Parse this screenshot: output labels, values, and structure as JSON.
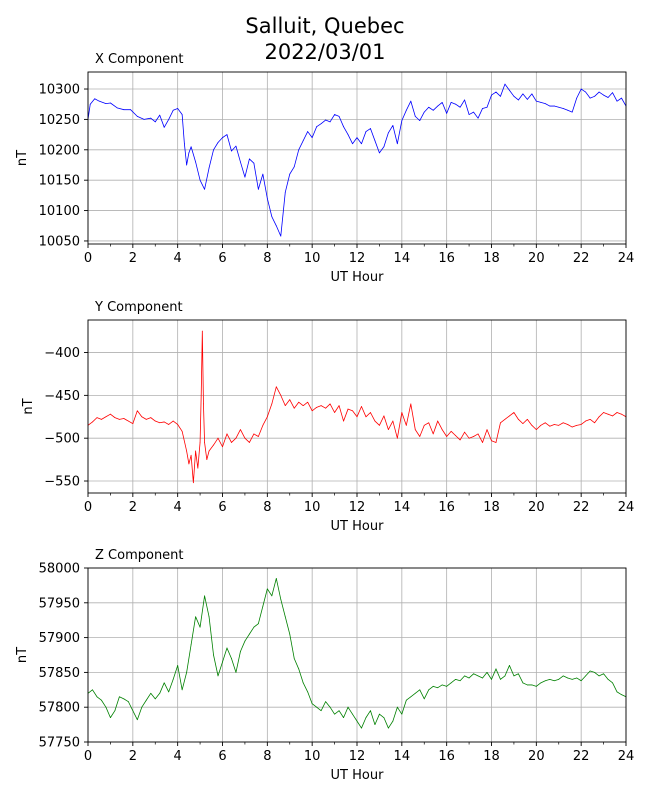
{
  "figure": {
    "title_line1": "Salluit, Quebec",
    "title_line2": "2022/03/01"
  },
  "chart_data": [
    {
      "type": "line",
      "title": "X Component",
      "xlabel": "UT Hour",
      "ylabel": "nT",
      "color": "#0000ff",
      "xlim": [
        0,
        24
      ],
      "ylim": [
        10045,
        10328
      ],
      "xticks": [
        0,
        2,
        4,
        6,
        8,
        10,
        12,
        14,
        16,
        18,
        20,
        22,
        24
      ],
      "yticks": [
        10050,
        10100,
        10150,
        10200,
        10250,
        10300
      ],
      "grid": true,
      "series": [
        {
          "x": [
            0,
            0.1,
            0.3,
            0.5,
            0.8,
            1.0,
            1.3,
            1.6,
            1.9,
            2.2,
            2.5,
            2.8,
            3.0,
            3.2,
            3.4,
            3.6,
            3.8,
            4.0,
            4.2,
            4.3,
            4.4,
            4.5,
            4.6,
            4.8,
            5.0,
            5.2,
            5.4,
            5.6,
            5.8,
            6.0,
            6.2,
            6.4,
            6.6,
            6.8,
            7.0,
            7.2,
            7.4,
            7.6,
            7.8,
            8.0,
            8.2,
            8.4,
            8.6,
            8.8,
            9.0,
            9.2,
            9.4,
            9.6,
            9.8,
            10.0,
            10.2,
            10.4,
            10.6,
            10.8,
            11.0,
            11.2,
            11.4,
            11.6,
            11.8,
            12.0,
            12.2,
            12.4,
            12.6,
            12.8,
            13.0,
            13.2,
            13.4,
            13.6,
            13.8,
            14.0,
            14.2,
            14.4,
            14.6,
            14.8,
            15.0,
            15.2,
            15.4,
            15.6,
            15.8,
            16.0,
            16.2,
            16.4,
            16.6,
            16.8,
            17.0,
            17.2,
            17.4,
            17.6,
            17.8,
            18.0,
            18.2,
            18.4,
            18.6,
            18.8,
            19.0,
            19.2,
            19.4,
            19.6,
            19.8,
            20.0,
            20.2,
            20.4,
            20.6,
            20.8,
            21.0,
            21.2,
            21.4,
            21.6,
            21.8,
            22.0,
            22.2,
            22.4,
            22.6,
            22.8,
            23.0,
            23.2,
            23.4,
            23.6,
            23.8,
            24.0
          ],
          "y": [
            10250,
            10275,
            10284,
            10280,
            10276,
            10277,
            10269,
            10266,
            10266,
            10255,
            10250,
            10252,
            10246,
            10257,
            10237,
            10250,
            10265,
            10268,
            10258,
            10210,
            10175,
            10195,
            10205,
            10180,
            10150,
            10135,
            10170,
            10200,
            10212,
            10220,
            10225,
            10198,
            10206,
            10180,
            10155,
            10185,
            10178,
            10135,
            10160,
            10120,
            10090,
            10075,
            10058,
            10130,
            10160,
            10172,
            10200,
            10215,
            10230,
            10220,
            10238,
            10243,
            10249,
            10246,
            10258,
            10255,
            10238,
            10225,
            10210,
            10220,
            10210,
            10230,
            10235,
            10215,
            10195,
            10205,
            10228,
            10240,
            10210,
            10248,
            10265,
            10280,
            10255,
            10248,
            10262,
            10270,
            10265,
            10272,
            10278,
            10260,
            10278,
            10275,
            10270,
            10282,
            10258,
            10262,
            10252,
            10268,
            10270,
            10290,
            10295,
            10288,
            10308,
            10298,
            10288,
            10282,
            10292,
            10283,
            10292,
            10280,
            10278,
            10276,
            10272,
            10272,
            10270,
            10268,
            10265,
            10262,
            10285,
            10300,
            10295,
            10285,
            10288,
            10295,
            10290,
            10286,
            10294,
            10280,
            10285,
            10272
          ]
        }
      ]
    },
    {
      "type": "line",
      "title": "Y Component",
      "xlabel": "UT Hour",
      "ylabel": "nT",
      "color": "#ff0000",
      "xlim": [
        0,
        24
      ],
      "ylim": [
        -564,
        -362
      ],
      "xticks": [
        0,
        2,
        4,
        6,
        8,
        10,
        12,
        14,
        16,
        18,
        20,
        22,
        24
      ],
      "yticks": [
        -400,
        -450,
        -500,
        -550
      ],
      "grid": true,
      "series": [
        {
          "x": [
            0,
            0.2,
            0.4,
            0.6,
            0.8,
            1.0,
            1.2,
            1.4,
            1.6,
            1.8,
            2.0,
            2.2,
            2.4,
            2.6,
            2.8,
            3.0,
            3.2,
            3.4,
            3.6,
            3.8,
            4.0,
            4.2,
            4.4,
            4.5,
            4.6,
            4.7,
            4.8,
            4.9,
            5.0,
            5.05,
            5.1,
            5.15,
            5.2,
            5.3,
            5.4,
            5.6,
            5.8,
            6.0,
            6.2,
            6.4,
            6.6,
            6.8,
            7.0,
            7.2,
            7.4,
            7.6,
            7.8,
            8.0,
            8.2,
            8.4,
            8.6,
            8.8,
            9.0,
            9.2,
            9.4,
            9.6,
            9.8,
            10.0,
            10.2,
            10.4,
            10.6,
            10.8,
            11.0,
            11.2,
            11.4,
            11.6,
            11.8,
            12.0,
            12.2,
            12.4,
            12.6,
            12.8,
            13.0,
            13.2,
            13.4,
            13.6,
            13.8,
            14.0,
            14.2,
            14.4,
            14.6,
            14.8,
            15.0,
            15.2,
            15.4,
            15.6,
            15.8,
            16.0,
            16.2,
            16.4,
            16.6,
            16.8,
            17.0,
            17.2,
            17.4,
            17.6,
            17.8,
            18.0,
            18.2,
            18.4,
            18.6,
            18.8,
            19.0,
            19.2,
            19.4,
            19.6,
            19.8,
            20.0,
            20.2,
            20.4,
            20.6,
            20.8,
            21.0,
            21.2,
            21.4,
            21.6,
            21.8,
            22.0,
            22.2,
            22.4,
            22.6,
            22.8,
            23.0,
            23.2,
            23.4,
            23.6,
            23.8,
            24.0
          ],
          "y": [
            -485,
            -481,
            -476,
            -478,
            -475,
            -472,
            -476,
            -478,
            -477,
            -480,
            -483,
            -468,
            -475,
            -478,
            -476,
            -480,
            -482,
            -481,
            -484,
            -480,
            -484,
            -492,
            -515,
            -530,
            -520,
            -552,
            -515,
            -535,
            -505,
            -450,
            -375,
            -460,
            -505,
            -525,
            -515,
            -508,
            -500,
            -510,
            -495,
            -505,
            -500,
            -490,
            -500,
            -505,
            -495,
            -498,
            -485,
            -475,
            -460,
            -440,
            -450,
            -462,
            -455,
            -465,
            -458,
            -462,
            -458,
            -468,
            -464,
            -462,
            -465,
            -460,
            -470,
            -462,
            -480,
            -466,
            -468,
            -475,
            -463,
            -475,
            -470,
            -480,
            -485,
            -474,
            -490,
            -480,
            -500,
            -470,
            -485,
            -460,
            -490,
            -498,
            -485,
            -482,
            -495,
            -480,
            -490,
            -498,
            -492,
            -497,
            -502,
            -493,
            -500,
            -498,
            -495,
            -505,
            -490,
            -503,
            -505,
            -482,
            -478,
            -474,
            -470,
            -478,
            -483,
            -478,
            -485,
            -490,
            -485,
            -482,
            -486,
            -484,
            -485,
            -482,
            -484,
            -487,
            -485,
            -484,
            -480,
            -478,
            -482,
            -475,
            -470,
            -472,
            -474,
            -470,
            -472,
            -475
          ]
        }
      ]
    },
    {
      "type": "line",
      "title": "Z Component",
      "xlabel": "UT Hour",
      "ylabel": "nT",
      "color": "#008000",
      "xlim": [
        0,
        24
      ],
      "ylim": [
        57750,
        58000
      ],
      "xticks": [
        0,
        2,
        4,
        6,
        8,
        10,
        12,
        14,
        16,
        18,
        20,
        22,
        24
      ],
      "yticks": [
        57750,
        57800,
        57850,
        57900,
        57950,
        58000
      ],
      "grid": true,
      "series": [
        {
          "x": [
            0,
            0.2,
            0.4,
            0.6,
            0.8,
            1.0,
            1.2,
            1.4,
            1.6,
            1.8,
            2.0,
            2.2,
            2.4,
            2.6,
            2.8,
            3.0,
            3.2,
            3.4,
            3.6,
            3.8,
            4.0,
            4.2,
            4.4,
            4.6,
            4.8,
            5.0,
            5.2,
            5.4,
            5.6,
            5.8,
            6.0,
            6.2,
            6.4,
            6.6,
            6.8,
            7.0,
            7.2,
            7.4,
            7.6,
            7.8,
            8.0,
            8.2,
            8.4,
            8.6,
            8.8,
            9.0,
            9.2,
            9.4,
            9.6,
            9.8,
            10.0,
            10.2,
            10.4,
            10.6,
            10.8,
            11.0,
            11.2,
            11.4,
            11.6,
            11.8,
            12.0,
            12.2,
            12.4,
            12.6,
            12.8,
            13.0,
            13.2,
            13.4,
            13.6,
            13.8,
            14.0,
            14.2,
            14.4,
            14.6,
            14.8,
            15.0,
            15.2,
            15.4,
            15.6,
            15.8,
            16.0,
            16.2,
            16.4,
            16.6,
            16.8,
            17.0,
            17.2,
            17.4,
            17.6,
            17.8,
            18.0,
            18.2,
            18.4,
            18.6,
            18.8,
            19.0,
            19.2,
            19.4,
            19.6,
            19.8,
            20.0,
            20.2,
            20.4,
            20.6,
            20.8,
            21.0,
            21.2,
            21.4,
            21.6,
            21.8,
            22.0,
            22.2,
            22.4,
            22.6,
            22.8,
            23.0,
            23.2,
            23.4,
            23.6,
            23.8,
            24.0
          ],
          "y": [
            57820,
            57825,
            57815,
            57810,
            57800,
            57785,
            57795,
            57815,
            57812,
            57808,
            57795,
            57782,
            57800,
            57810,
            57820,
            57812,
            57820,
            57835,
            57822,
            57840,
            57860,
            57825,
            57850,
            57890,
            57930,
            57915,
            57960,
            57930,
            57875,
            57845,
            57865,
            57885,
            57870,
            57850,
            57880,
            57895,
            57905,
            57915,
            57920,
            57945,
            57970,
            57960,
            57985,
            57955,
            57930,
            57905,
            57870,
            57855,
            57835,
            57822,
            57805,
            57800,
            57795,
            57808,
            57800,
            57790,
            57795,
            57785,
            57800,
            57790,
            57780,
            57770,
            57785,
            57795,
            57775,
            57790,
            57785,
            57770,
            57780,
            57800,
            57790,
            57810,
            57815,
            57820,
            57825,
            57812,
            57825,
            57830,
            57828,
            57832,
            57830,
            57835,
            57840,
            57838,
            57845,
            57842,
            57848,
            57845,
            57842,
            57850,
            57840,
            57855,
            57840,
            57845,
            57860,
            57845,
            57848,
            57835,
            57832,
            57832,
            57830,
            57835,
            57838,
            57840,
            57838,
            57840,
            57845,
            57842,
            57840,
            57842,
            57838,
            57845,
            57852,
            57850,
            57845,
            57848,
            57840,
            57835,
            57822,
            57818,
            57815
          ]
        }
      ]
    }
  ]
}
